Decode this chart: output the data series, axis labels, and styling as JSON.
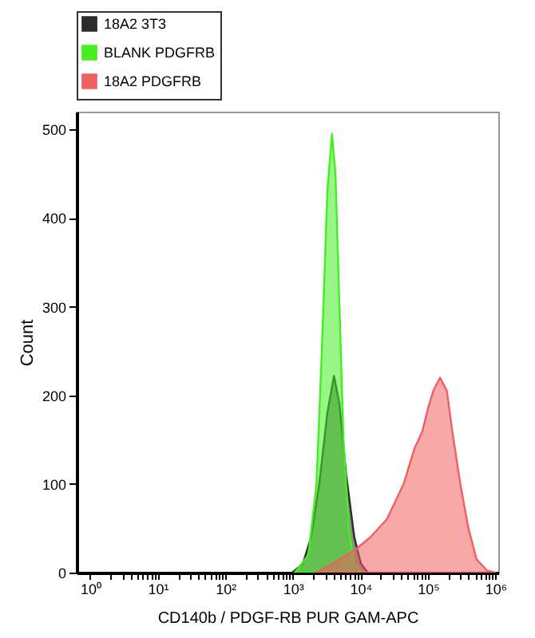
{
  "chart_data": {
    "type": "area",
    "xlabel": "CD140b / PDGF-RB PUR GAM-APC",
    "ylabel": "Count",
    "log": "x",
    "legend": "top",
    "grid": false,
    "xlim": [
      0.63,
      1100000
    ],
    "xticks": [
      {
        "value": 1,
        "label": "10⁰"
      },
      {
        "value": 10,
        "label": "10¹"
      },
      {
        "value": 100,
        "label": "10²"
      },
      {
        "value": 1000,
        "label": "10³"
      },
      {
        "value": 10000,
        "label": "10⁴"
      },
      {
        "value": 100000,
        "label": "10⁵"
      },
      {
        "value": 1000000,
        "label": "10⁶"
      },
      {
        "value": 2,
        "label": null
      },
      {
        "value": 3,
        "label": null
      },
      {
        "value": 4,
        "label": null
      },
      {
        "value": 5,
        "label": null
      },
      {
        "value": 6,
        "label": null
      },
      {
        "value": 7,
        "label": null
      },
      {
        "value": 8,
        "label": null
      },
      {
        "value": 9,
        "label": null
      },
      {
        "value": 20,
        "label": null
      },
      {
        "value": 30,
        "label": null
      },
      {
        "value": 40,
        "label": null
      },
      {
        "value": 50,
        "label": null
      },
      {
        "value": 60,
        "label": null
      },
      {
        "value": 70,
        "label": null
      },
      {
        "value": 80,
        "label": null
      },
      {
        "value": 90,
        "label": null
      },
      {
        "value": 200,
        "label": null
      },
      {
        "value": 300,
        "label": null
      },
      {
        "value": 400,
        "label": null
      },
      {
        "value": 500,
        "label": null
      },
      {
        "value": 600,
        "label": null
      },
      {
        "value": 700,
        "label": null
      },
      {
        "value": 800,
        "label": null
      },
      {
        "value": 900,
        "label": null
      },
      {
        "value": 2000,
        "label": null
      },
      {
        "value": 3000,
        "label": null
      },
      {
        "value": 4000,
        "label": null
      },
      {
        "value": 5000,
        "label": null
      },
      {
        "value": 6000,
        "label": null
      },
      {
        "value": 7000,
        "label": null
      },
      {
        "value": 8000,
        "label": null
      },
      {
        "value": 9000,
        "label": null
      },
      {
        "value": 20000,
        "label": null
      },
      {
        "value": 30000,
        "label": null
      },
      {
        "value": 40000,
        "label": null
      },
      {
        "value": 50000,
        "label": null
      },
      {
        "value": 60000,
        "label": null
      },
      {
        "value": 70000,
        "label": null
      },
      {
        "value": 80000,
        "label": null
      },
      {
        "value": 90000,
        "label": null
      },
      {
        "value": 200000,
        "label": null
      },
      {
        "value": 300000,
        "label": null
      },
      {
        "value": 400000,
        "label": null
      },
      {
        "value": 500000,
        "label": null
      },
      {
        "value": 600000,
        "label": null
      },
      {
        "value": 700000,
        "label": null
      },
      {
        "value": 800000,
        "label": null
      },
      {
        "value": 900000,
        "label": null
      }
    ],
    "ylim": [
      0,
      520
    ],
    "yticks": [
      0,
      100,
      200,
      300,
      400,
      500
    ],
    "series": [
      {
        "name": "18A2 3T3",
        "color": "#2b2b2b",
        "x": [
          980,
          1410,
          1860,
          2460,
          3240,
          4070,
          4900,
          6170,
          8130,
          10200,
          12900
        ],
        "values": [
          0,
          10,
          40,
          100,
          180,
          222,
          190,
          110,
          40,
          10,
          0
        ]
      },
      {
        "name": "BLANK PDGFRB",
        "color": "#44ee22",
        "x": [
          1070,
          1700,
          2240,
          2690,
          3240,
          3800,
          4270,
          4900,
          5620,
          6760,
          8130,
          10200
        ],
        "values": [
          0,
          20,
          100,
          250,
          430,
          495,
          450,
          300,
          150,
          50,
          10,
          0
        ]
      },
      {
        "name": "18A2 PDGFRB",
        "color": "#f06060",
        "x": [
          2240,
          3890,
          8130,
          14100,
          24600,
          43700,
          63100,
          83200,
          100000,
          120000,
          151000,
          191000,
          229000,
          302000,
          398000,
          525000,
          759000,
          1000000
        ],
        "values": [
          0,
          10,
          25,
          40,
          60,
          100,
          140,
          160,
          185,
          205,
          220,
          205,
          160,
          100,
          50,
          15,
          2,
          0
        ]
      }
    ]
  }
}
